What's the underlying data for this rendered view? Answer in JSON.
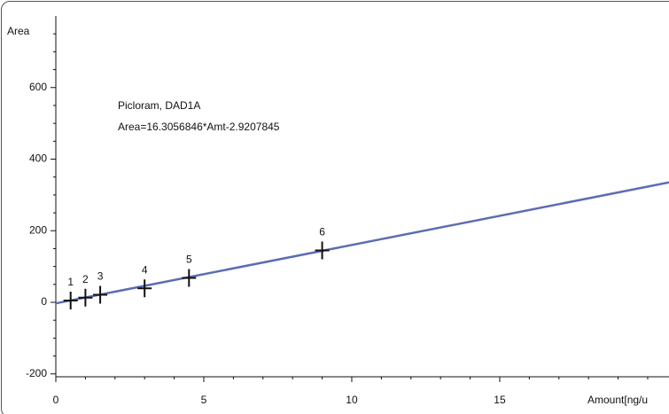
{
  "chart_data": {
    "type": "scatter",
    "y_label": "Area",
    "x_label": "Amount[ng/u",
    "annotations": [
      "Picloram, DAD1A",
      "Area=16.3056846*Amt-2.9207845"
    ],
    "x": [
      0.5,
      1,
      1.5,
      3,
      4.5,
      9
    ],
    "values": [
      5,
      13,
      21,
      39,
      68,
      145
    ],
    "point_labels": [
      "1",
      "2",
      "3",
      "4",
      "5",
      "6"
    ],
    "color": "#111111",
    "fit": {
      "x": [
        0,
        20.72
      ],
      "values": [
        -2.92,
        334.93
      ],
      "color": "#5b6db3"
    },
    "xlim": [
      0,
      20.72
    ],
    "ylim": [
      -208,
      800
    ],
    "xticks": [
      0,
      5,
      10,
      15
    ],
    "yticks": [
      -200,
      0,
      200,
      400,
      600
    ],
    "x_minor_ticks": [
      1,
      2,
      3,
      4,
      6,
      7,
      8,
      9,
      11,
      12,
      13,
      14,
      16,
      17,
      18,
      19,
      20
    ],
    "y_minor_ticks": [
      -150,
      -100,
      -50,
      50,
      100,
      150,
      250,
      300,
      350,
      450,
      500,
      550,
      650,
      700,
      750
    ]
  }
}
